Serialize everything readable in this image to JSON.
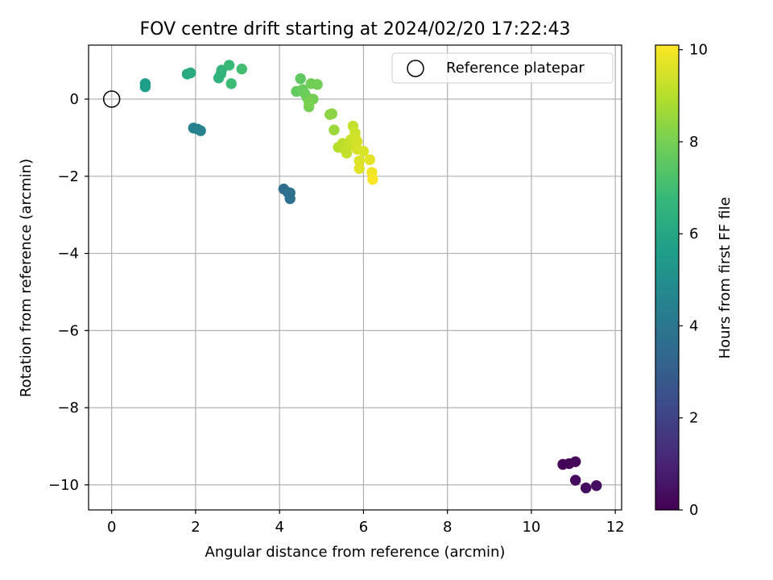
{
  "chart_data": {
    "type": "scatter",
    "title": "FOV centre drift starting at 2024/02/20 17:22:43",
    "xlabel": "Angular distance from reference (arcmin)",
    "ylabel": "Rotation from reference (arcmin)",
    "xlim": [
      -0.55,
      12.15
    ],
    "ylim": [
      -10.65,
      1.4
    ],
    "xticks": [
      0,
      2,
      4,
      6,
      8,
      10,
      12
    ],
    "xtick_labels": [
      "0",
      "2",
      "4",
      "6",
      "8",
      "10",
      "12"
    ],
    "yticks": [
      0,
      -2,
      -4,
      -6,
      -8,
      -10
    ],
    "ytick_labels": [
      "0",
      "−2",
      "−4",
      "−6",
      "−8",
      "−10"
    ],
    "grid": true,
    "colormap": "viridis",
    "colorbar": {
      "label": "Hours from first FF file",
      "range": [
        0,
        10.1
      ],
      "ticks": [
        0,
        2,
        4,
        6,
        8,
        10
      ],
      "tick_labels": [
        "0",
        "2",
        "4",
        "6",
        "8",
        "10"
      ]
    },
    "legend": {
      "position": "top-right",
      "entries": [
        "Reference platepar"
      ]
    },
    "reference_point": {
      "x": 0,
      "y": 0
    },
    "points": [
      {
        "x": 10.75,
        "y": -9.47,
        "t": 0.05
      },
      {
        "x": 10.9,
        "y": -9.45,
        "t": 0.12
      },
      {
        "x": 11.05,
        "y": -9.4,
        "t": 0.2
      },
      {
        "x": 11.05,
        "y": -9.88,
        "t": 0.3
      },
      {
        "x": 11.3,
        "y": -10.08,
        "t": 0.35
      },
      {
        "x": 11.55,
        "y": -10.02,
        "t": 0.4
      },
      {
        "x": 4.1,
        "y": -2.33,
        "t": 3.6
      },
      {
        "x": 4.2,
        "y": -2.42,
        "t": 3.65
      },
      {
        "x": 4.25,
        "y": -2.43,
        "t": 3.7
      },
      {
        "x": 4.25,
        "y": -2.58,
        "t": 3.75
      },
      {
        "x": 1.95,
        "y": -0.75,
        "t": 4.4
      },
      {
        "x": 2.05,
        "y": -0.78,
        "t": 4.45
      },
      {
        "x": 2.12,
        "y": -0.82,
        "t": 4.5
      },
      {
        "x": 0.8,
        "y": 0.4,
        "t": 5.6
      },
      {
        "x": 0.8,
        "y": 0.32,
        "t": 5.62
      },
      {
        "x": 1.8,
        "y": 0.65,
        "t": 6.1
      },
      {
        "x": 1.88,
        "y": 0.68,
        "t": 6.15
      },
      {
        "x": 2.55,
        "y": 0.55,
        "t": 6.5
      },
      {
        "x": 2.6,
        "y": 0.65,
        "t": 6.55
      },
      {
        "x": 2.62,
        "y": 0.75,
        "t": 6.6
      },
      {
        "x": 2.8,
        "y": 0.88,
        "t": 6.8
      },
      {
        "x": 2.85,
        "y": 0.4,
        "t": 6.9
      },
      {
        "x": 3.1,
        "y": 0.78,
        "t": 7.0
      },
      {
        "x": 4.5,
        "y": 0.53,
        "t": 7.6
      },
      {
        "x": 4.4,
        "y": 0.2,
        "t": 7.7
      },
      {
        "x": 4.55,
        "y": 0.25,
        "t": 7.75
      },
      {
        "x": 4.6,
        "y": 0.15,
        "t": 7.8
      },
      {
        "x": 4.65,
        "y": 0.05,
        "t": 7.85
      },
      {
        "x": 4.75,
        "y": 0.4,
        "t": 7.9
      },
      {
        "x": 4.8,
        "y": 0.0,
        "t": 7.95
      },
      {
        "x": 4.7,
        "y": -0.2,
        "t": 8.0
      },
      {
        "x": 4.7,
        "y": -0.08,
        "t": 8.05
      },
      {
        "x": 4.9,
        "y": 0.38,
        "t": 7.9
      },
      {
        "x": 5.2,
        "y": -0.4,
        "t": 8.3
      },
      {
        "x": 5.25,
        "y": -0.38,
        "t": 8.35
      },
      {
        "x": 5.3,
        "y": -0.8,
        "t": 8.6
      },
      {
        "x": 5.4,
        "y": -1.25,
        "t": 9.0
      },
      {
        "x": 5.5,
        "y": -1.15,
        "t": 9.1
      },
      {
        "x": 5.55,
        "y": -1.3,
        "t": 9.15
      },
      {
        "x": 5.6,
        "y": -1.4,
        "t": 9.2
      },
      {
        "x": 5.65,
        "y": -1.2,
        "t": 9.25
      },
      {
        "x": 5.7,
        "y": -1.05,
        "t": 9.3
      },
      {
        "x": 5.75,
        "y": -0.7,
        "t": 9.2
      },
      {
        "x": 5.8,
        "y": -0.88,
        "t": 9.35
      },
      {
        "x": 5.8,
        "y": -1.0,
        "t": 9.4
      },
      {
        "x": 5.85,
        "y": -1.1,
        "t": 9.45
      },
      {
        "x": 5.85,
        "y": -1.3,
        "t": 9.5
      },
      {
        "x": 5.9,
        "y": -1.6,
        "t": 9.6
      },
      {
        "x": 5.9,
        "y": -1.8,
        "t": 9.65
      },
      {
        "x": 6.0,
        "y": -1.35,
        "t": 9.55
      },
      {
        "x": 6.15,
        "y": -1.57,
        "t": 9.7
      },
      {
        "x": 6.2,
        "y": -1.9,
        "t": 9.9
      },
      {
        "x": 6.22,
        "y": -2.08,
        "t": 10.0
      }
    ]
  }
}
